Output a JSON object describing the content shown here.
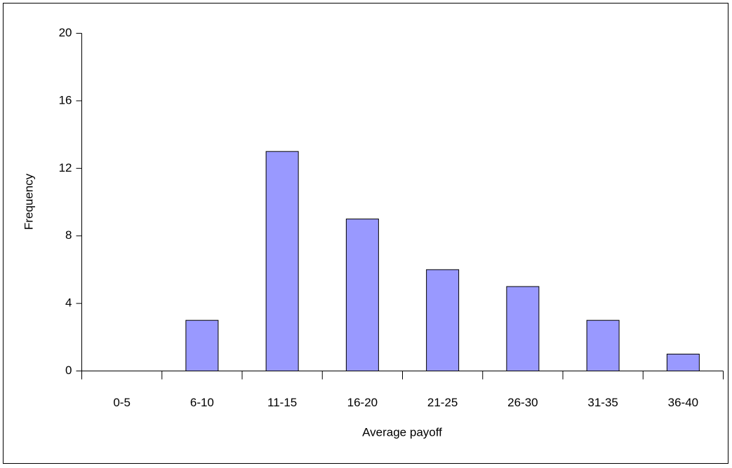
{
  "chart_data": {
    "type": "bar",
    "x_label": "Average payoff",
    "y_label": "Frequency",
    "categories": [
      "0-5",
      "6-10",
      "11-15",
      "16-20",
      "21-25",
      "26-30",
      "31-35",
      "36-40"
    ],
    "values": [
      0,
      3,
      13,
      9,
      6,
      5,
      3,
      1
    ],
    "color": "#9999ff",
    "ylim": [
      0,
      20
    ],
    "yticks": [
      0,
      4,
      8,
      12,
      16,
      20
    ],
    "grid": false
  }
}
